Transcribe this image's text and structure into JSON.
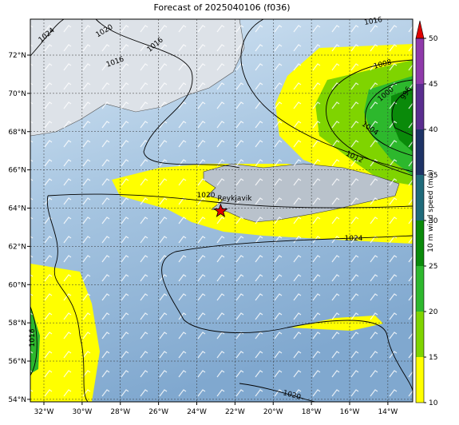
{
  "title": "Forecast of 2025040106 (f036)",
  "xlim": [
    -32.71,
    -12.7
  ],
  "ylim": [
    53.87,
    73.88
  ],
  "xticks": [
    {
      "value": -32,
      "label": "32°W"
    },
    {
      "value": -30,
      "label": "30°W"
    },
    {
      "value": -28,
      "label": "28°W"
    },
    {
      "value": -26,
      "label": "26°W"
    },
    {
      "value": -24,
      "label": "24°W"
    },
    {
      "value": -22,
      "label": "22°W"
    },
    {
      "value": -20,
      "label": "20°W"
    },
    {
      "value": -18,
      "label": "18°W"
    },
    {
      "value": -16,
      "label": "16°W"
    },
    {
      "value": -14,
      "label": "14°W"
    }
  ],
  "yticks": [
    {
      "value": 54,
      "label": "54°N"
    },
    {
      "value": 56,
      "label": "56°N"
    },
    {
      "value": 58,
      "label": "58°N"
    },
    {
      "value": 60,
      "label": "60°N"
    },
    {
      "value": 62,
      "label": "62°N"
    },
    {
      "value": 64,
      "label": "64°N"
    },
    {
      "value": 66,
      "label": "66°N"
    },
    {
      "value": 68,
      "label": "68°N"
    },
    {
      "value": 70,
      "label": "70°N"
    },
    {
      "value": 72,
      "label": "72°N"
    }
  ],
  "colorbar": {
    "label": "10 m wind speed (m/s)",
    "ticks": [
      10,
      15,
      20,
      25,
      30,
      35,
      40,
      45,
      50
    ],
    "colors": [
      "#ffff00",
      "#7fd400",
      "#2db82d",
      "#0a8a0a",
      "#1f6a7a",
      "#1e3366",
      "#5a2d8f",
      "#8f3aaa"
    ],
    "extend_color": "#e00000"
  },
  "city": {
    "name": "Reykjavik",
    "lon": -22.75,
    "lat": 63.85
  },
  "contour_labels": [
    "1024",
    "1020",
    "1016",
    "1016",
    "1016",
    "1008",
    "1000",
    "996",
    "1004",
    "1012",
    "1020",
    "1024",
    "1020",
    "1016"
  ]
}
